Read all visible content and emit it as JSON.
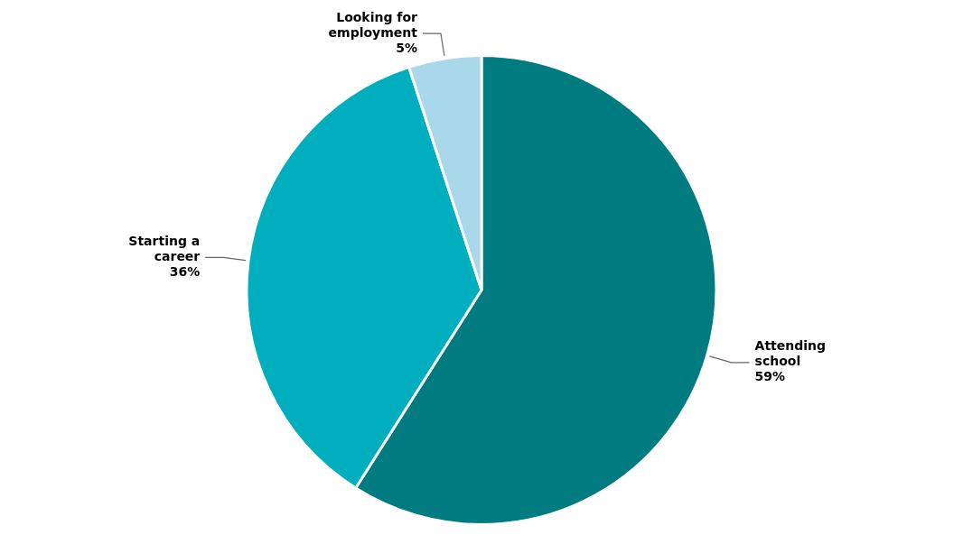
{
  "chart_data": {
    "type": "pie",
    "categories": [
      "Attending school",
      "Starting a career",
      "Looking for employment"
    ],
    "values": [
      59,
      36,
      5
    ],
    "colors": [
      "#007B7F",
      "#00AEBD",
      "#A8D8EA"
    ],
    "annotations": [
      "Attending\nschool\n59%",
      "Starting a\ncareer\n36%",
      "Looking for\nemployment\n5%"
    ]
  }
}
